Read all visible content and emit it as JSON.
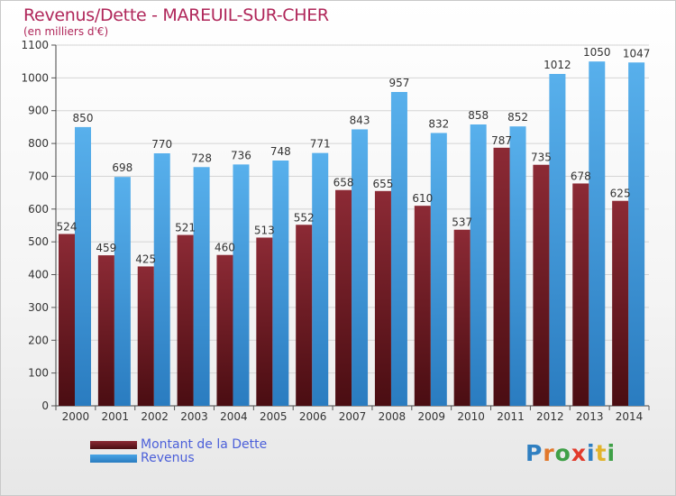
{
  "chart_data": {
    "type": "bar",
    "title": "Revenus/Dette - MAREUIL-SUR-CHER",
    "subtitle": "(en milliers d'€)",
    "categories": [
      "2000",
      "2001",
      "2002",
      "2003",
      "2004",
      "2005",
      "2006",
      "2007",
      "2008",
      "2009",
      "2010",
      "2011",
      "2012",
      "2013",
      "2014"
    ],
    "series": [
      {
        "name": "Montant de la Dette",
        "color": "#8c2a35",
        "values": [
          524,
          459,
          425,
          521,
          460,
          513,
          552,
          658,
          655,
          610,
          537,
          787,
          735,
          678,
          625
        ]
      },
      {
        "name": "Revenus",
        "color": "#49a5e6",
        "values": [
          850,
          698,
          770,
          728,
          736,
          748,
          771,
          843,
          957,
          832,
          858,
          852,
          1012,
          1050,
          1047
        ]
      }
    ],
    "ylim": [
      0,
      1100
    ],
    "yticks": [
      0,
      100,
      200,
      300,
      400,
      500,
      600,
      700,
      800,
      900,
      1000,
      1100
    ],
    "grid": true,
    "legend_position": "bottom-left"
  },
  "legend": {
    "items": [
      {
        "label": "Montant de la Dette",
        "color": "#8c2a35"
      },
      {
        "label": "Revenus",
        "color": "#49a5e6"
      }
    ]
  },
  "brand": {
    "letters": [
      {
        "ch": "P",
        "color": "#2f7fc1"
      },
      {
        "ch": "r",
        "color": "#e2782b"
      },
      {
        "ch": "o",
        "color": "#3fa047"
      },
      {
        "ch": "x",
        "color": "#e23a2b"
      },
      {
        "ch": "i",
        "color": "#2f7fc1"
      },
      {
        "ch": "t",
        "color": "#e2b32b"
      },
      {
        "ch": "i",
        "color": "#3fa047"
      }
    ]
  }
}
